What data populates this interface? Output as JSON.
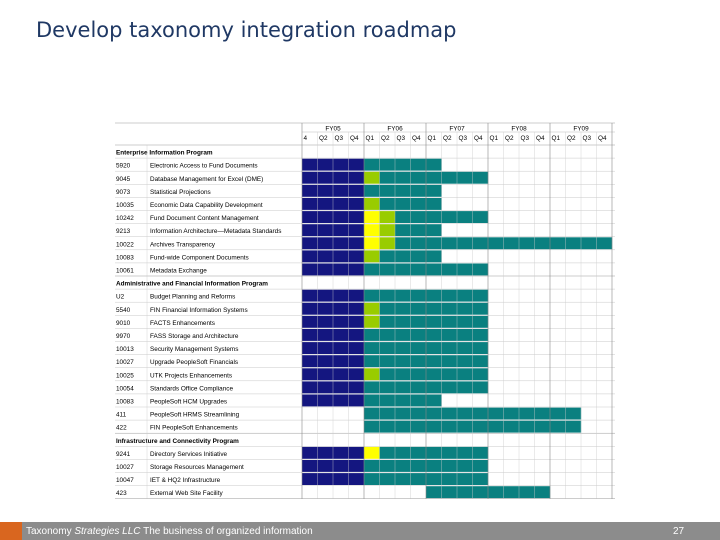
{
  "slide": {
    "title": "Develop taxonomy integration roadmap",
    "page_number": "27"
  },
  "footer": {
    "company_prefix": "Taxonomy ",
    "company_emphasis": "Strategies LLC",
    "tagline": " The business of organized information"
  },
  "colors": {
    "navy": "#141680",
    "teal": "#0a8080",
    "lime": "#99cc00",
    "yellow": "#ffff00"
  },
  "chart_data": {
    "type": "table",
    "fiscal_years": [
      {
        "label": "FY05",
        "quarters": [
          "4",
          "Q2",
          "Q3",
          "Q4"
        ]
      },
      {
        "label": "FY06",
        "quarters": [
          "Q1",
          "Q2",
          "Q3",
          "Q4"
        ]
      },
      {
        "label": "FY07",
        "quarters": [
          "Q1",
          "Q2",
          "Q3",
          "Q4"
        ]
      },
      {
        "label": "FY08",
        "quarters": [
          "Q1",
          "Q2",
          "Q3",
          "Q4"
        ]
      },
      {
        "label": "FY09",
        "quarters": [
          "Q1",
          "Q2",
          "Q3",
          "Q4"
        ]
      }
    ],
    "groups": [
      {
        "name": "Enterprise Information Program",
        "rows": [
          {
            "id": "5920",
            "name": "Electronic Access to Fund Documents",
            "cells": "NNNNTTTTT..........."
          },
          {
            "id": "9045",
            "name": "Database Management for Excel (DME)",
            "cells": "NNNNLTTTTTTT........"
          },
          {
            "id": "9073",
            "name": "Statistical Projections",
            "cells": "NNNNTTTTT..........."
          },
          {
            "id": "10035",
            "name": "Economic Data Capability Development",
            "cells": "NNNNLTTTT..........."
          },
          {
            "id": "10242",
            "name": "Fund Document Content Management",
            "cells": "NNNNYLTTTTTT........"
          },
          {
            "id": "9213",
            "name": "Information Architecture—Metadata Standards",
            "cells": "NNNNYLTTT..........."
          },
          {
            "id": "10022",
            "name": "Archives Transparency",
            "cells": "NNNNYLTTTTTTTTTTTTTT"
          },
          {
            "id": "10083",
            "name": "Fund-wide Component Documents",
            "cells": "NNNNLTTTT..........."
          },
          {
            "id": "10061",
            "name": "Metadata Exchange",
            "cells": "NNNNTTTTTTTT........"
          }
        ]
      },
      {
        "name": "Administrative and Financial Information Program",
        "rows": [
          {
            "id": "U2",
            "name": "Budget Planning and Reforms",
            "cells": "NNNNTTTTTTTT........"
          },
          {
            "id": "5540",
            "name": "FIN Financial Information Systems",
            "cells": "NNNNLTTTTTTT........"
          },
          {
            "id": "9010",
            "name": "FACTS Enhancements",
            "cells": "NNNNLTTTTTTT........"
          },
          {
            "id": "9970",
            "name": "FASS Storage and Architecture",
            "cells": "NNNNTTTTTTTT........"
          },
          {
            "id": "10013",
            "name": "Security Management Systems",
            "cells": "NNNNTTTTTTTT........"
          },
          {
            "id": "10027",
            "name": "Upgrade PeopleSoft Financials",
            "cells": "NNNNTTTTTTTT........"
          },
          {
            "id": "10025",
            "name": "UTK Projects Enhancements",
            "cells": "NNNNLTTTTTTT........"
          },
          {
            "id": "10054",
            "name": "Standards Office Compliance",
            "cells": "NNNNTTTTTTTT........"
          },
          {
            "id": "10083",
            "name": "PeopleSoft HCM Upgrades",
            "cells": "NNNNTTTTT..........."
          },
          {
            "id": "411",
            "name": "PeopleSoft HRMS Streamlining",
            "cells": "....TTTTTTTTTTTTTT.."
          },
          {
            "id": "422",
            "name": "FIN PeopleSoft Enhancements",
            "cells": "....TTTTTTTTTTTTTT.."
          }
        ]
      },
      {
        "name": "Infrastructure and Connectivity Program",
        "rows": [
          {
            "id": "9241",
            "name": "Directory Services Initiative",
            "cells": "NNNNYTTTTTTT........"
          },
          {
            "id": "10027",
            "name": "Storage Resources Management",
            "cells": "NNNNTTTTTTTT........"
          },
          {
            "id": "10047",
            "name": "IET & HQ2 Infrastructure",
            "cells": "NNNNTTTTTTTT........"
          },
          {
            "id": "423",
            "name": "External Web Site Facility",
            "cells": "........TTTTTTTT...."
          }
        ]
      }
    ]
  }
}
